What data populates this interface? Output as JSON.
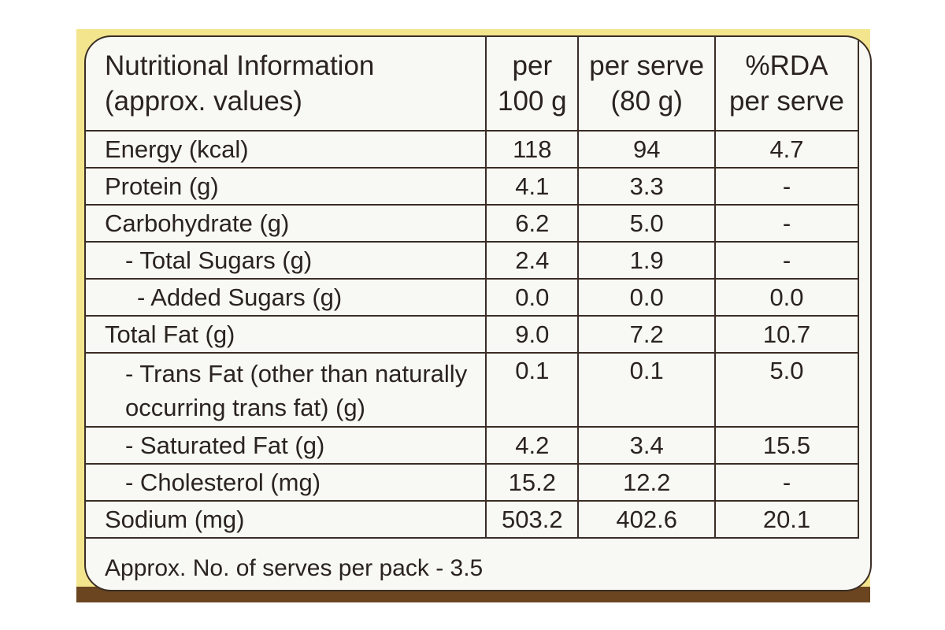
{
  "table": {
    "header": {
      "title_line1": "Nutritional Information",
      "title_line2": "(approx. values)",
      "col1_line1": "per",
      "col1_line2": "100 g",
      "col2_line1": "per serve",
      "col2_line2": "(80 g)",
      "col3_line1": "%RDA",
      "col3_line2": "per serve"
    },
    "rows": [
      {
        "name": "Energy (kcal)",
        "per100": "118",
        "perServe": "94",
        "rda": "4.7"
      },
      {
        "name": "Protein (g)",
        "per100": "4.1",
        "perServe": "3.3",
        "rda": "-"
      },
      {
        "name": "Carbohydrate (g)",
        "per100": "6.2",
        "perServe": "5.0",
        "rda": "-"
      },
      {
        "name": "- Total Sugars (g)",
        "per100": "2.4",
        "perServe": "1.9",
        "rda": "-"
      },
      {
        "name": "- Added Sugars (g)",
        "per100": "0.0",
        "perServe": "0.0",
        "rda": "0.0"
      },
      {
        "name": "Total Fat (g)",
        "per100": "9.0",
        "perServe": "7.2",
        "rda": "10.7"
      },
      {
        "name_line1": "- Trans Fat (other than naturally",
        "name_line2": "occurring trans fat) (g)",
        "per100": "0.1",
        "perServe": "0.1",
        "rda": "5.0"
      },
      {
        "name": "- Saturated Fat (g)",
        "per100": "4.2",
        "perServe": "3.4",
        "rda": "15.5"
      },
      {
        "name": "- Cholesterol (mg)",
        "per100": "15.2",
        "perServe": "12.2",
        "rda": "-"
      },
      {
        "name": "Sodium (mg)",
        "per100": "503.2",
        "perServe": "402.6",
        "rda": "20.1"
      }
    ],
    "footer": "Approx. No. of serves per pack - 3.5"
  }
}
